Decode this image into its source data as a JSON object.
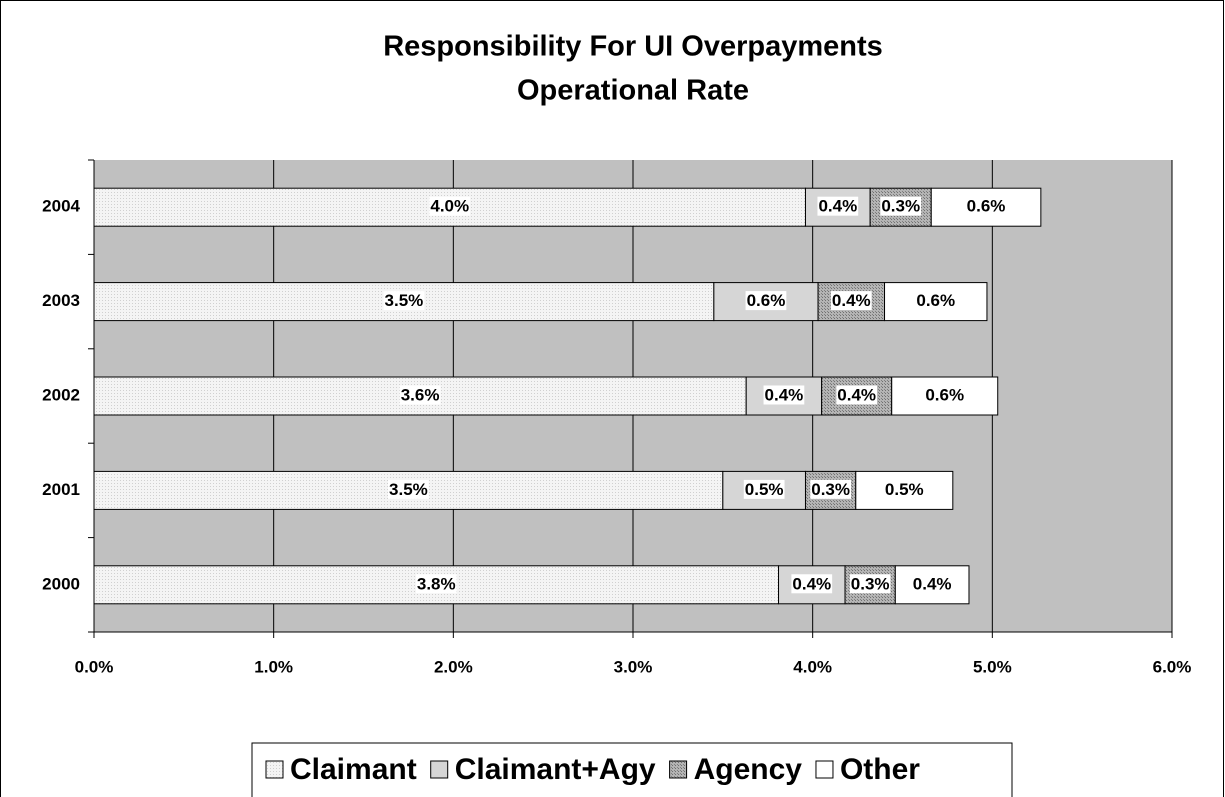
{
  "chart_data": {
    "type": "stacked-bar-horizontal",
    "title": [
      "Responsibility For UI Overpayments",
      "Operational Rate"
    ],
    "categories": [
      "2004",
      "2003",
      "2002",
      "2001",
      "2000"
    ],
    "series": [
      {
        "name": "Claimant",
        "color": "#f2f2f2",
        "values": [
          3.96,
          3.45,
          3.63,
          3.5,
          3.81
        ],
        "value_labels": [
          "4.0%",
          "3.5%",
          "3.6%",
          "3.5%",
          "3.8%"
        ]
      },
      {
        "name": "Claimant+Agy",
        "color": "#d6d6d6",
        "values": [
          0.36,
          0.58,
          0.42,
          0.46,
          0.37
        ],
        "value_labels": [
          "0.4%",
          "0.6%",
          "0.4%",
          "0.5%",
          "0.4%"
        ]
      },
      {
        "name": "Agency",
        "color": "#a8a8a8",
        "values": [
          0.34,
          0.37,
          0.39,
          0.28,
          0.28
        ],
        "value_labels": [
          "0.3%",
          "0.4%",
          "0.4%",
          "0.3%",
          "0.3%"
        ]
      },
      {
        "name": "Other",
        "color": "#ffffff",
        "values": [
          0.61,
          0.57,
          0.59,
          0.54,
          0.41
        ],
        "value_labels": [
          "0.6%",
          "0.6%",
          "0.6%",
          "0.5%",
          "0.4%"
        ]
      }
    ],
    "xlim": [
      0,
      6
    ],
    "xticks": [
      {
        "value": 0,
        "label": "0.0%"
      },
      {
        "value": 1,
        "label": "1.0%"
      },
      {
        "value": 2,
        "label": "2.0%"
      },
      {
        "value": 3,
        "label": "3.0%"
      },
      {
        "value": 4,
        "label": "4.0%"
      },
      {
        "value": 5,
        "label": "5.0%"
      },
      {
        "value": 6,
        "label": "6.0%"
      }
    ],
    "grid": true,
    "plot_background": "#c0c0c0",
    "legend": "bottom"
  }
}
